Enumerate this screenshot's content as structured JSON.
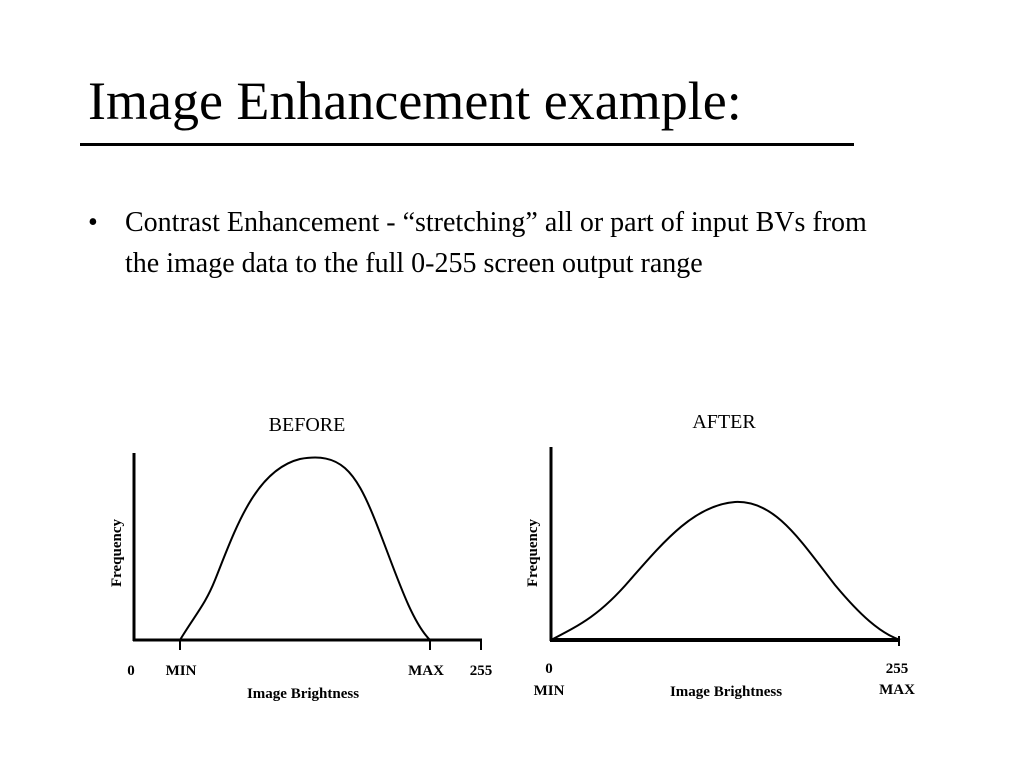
{
  "title": "Image Enhancement example:",
  "bullets": [
    "Contrast Enhancement - “stretching” all or part of input BVs from the image data to the full 0-255 screen output range"
  ],
  "figures": [
    {
      "title": "BEFORE",
      "y_label": "Frequency",
      "x_label": "Image Brightness",
      "ticks": [
        "0",
        "MIN",
        "MAX",
        "255"
      ]
    },
    {
      "title": "AFTER",
      "y_label": "Frequency",
      "x_label": "Image Brightness",
      "ticks": [
        "0",
        "255"
      ],
      "tick_sublabels": [
        "MIN",
        "MAX"
      ]
    }
  ]
}
